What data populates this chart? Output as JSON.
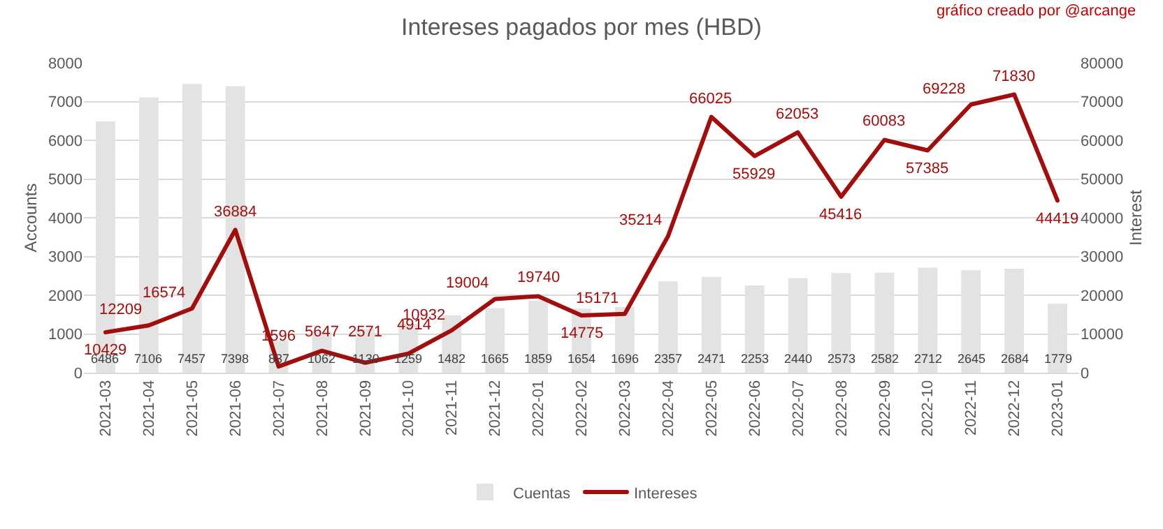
{
  "chart_data": {
    "type": "bar",
    "title": "Intereses pagados por mes (HBD)",
    "ylabel": "Accounts",
    "y2label": "Interest",
    "annotations": [
      "gráfico creado por @arcange"
    ],
    "categories": [
      "2021-03",
      "2021-04",
      "2021-05",
      "2021-06",
      "2021-07",
      "2021-08",
      "2021-09",
      "2021-10",
      "2021-11",
      "2021-12",
      "2022-01",
      "2022-02",
      "2022-03",
      "2022-04",
      "2022-05",
      "2022-06",
      "2022-07",
      "2022-08",
      "2022-09",
      "2022-10",
      "2022-11",
      "2022-12",
      "2023-01"
    ],
    "series": [
      {
        "name": "Cuentas",
        "color": "#e3e3e3",
        "values": [
          6486,
          7106,
          7457,
          7398,
          837,
          1062,
          1130,
          1259,
          1482,
          1665,
          1859,
          1654,
          1696,
          2357,
          2471,
          2253,
          2440,
          2573,
          2582,
          2712,
          2645,
          2684,
          1779
        ]
      },
      {
        "name": "Intereses",
        "type": "line",
        "axis": "y2",
        "color": "#a00e0e",
        "values": [
          10429,
          12209,
          16574,
          36884,
          1596,
          5647,
          2571,
          4914,
          10932,
          19004,
          19740,
          14775,
          15171,
          35214,
          66025,
          55929,
          62053,
          45416,
          60083,
          57385,
          69228,
          71830,
          44419
        ]
      }
    ],
    "ylim": [
      0,
      8000
    ],
    "yticks": [
      0,
      1000,
      2000,
      3000,
      4000,
      5000,
      6000,
      7000,
      8000
    ],
    "y2lim": [
      0,
      80000
    ],
    "y2ticks": [
      0,
      10000,
      20000,
      30000,
      40000,
      50000,
      60000,
      70000,
      80000
    ],
    "data_labels": true,
    "grid": "y",
    "legend": "bottom",
    "marker": "none",
    "line_style": "solid"
  }
}
